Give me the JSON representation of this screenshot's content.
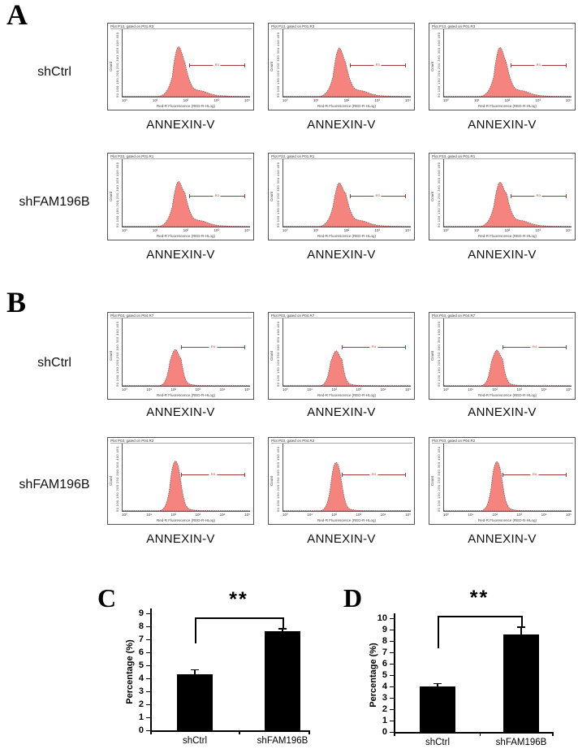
{
  "colors": {
    "histogram_fill": "#f5837e",
    "histogram_outline": "#555555",
    "gate": "#a23b38",
    "bar": "#000000"
  },
  "figure": {
    "flow_panels": [
      {
        "letter": "A",
        "rows": [
          {
            "row_label": "shCtrl",
            "plot_header": "Plot P13, gated on P01.R3",
            "gate_label": "R3",
            "ylabel": "Count",
            "y_ticks": "50 100 150 200 250 300 350 400 450",
            "x_ticks": [
              "10⁰",
              "10¹",
              "10²",
              "10³",
              "10⁴"
            ],
            "xlabel": "Red-R Fluorescence (RED-R-HLog)",
            "axis_caption": "ANNEXIN-V",
            "shape": {
              "variant": "tail",
              "apex": 26,
              "peak_x": 45,
              "gate_x1": 52,
              "gate_x2": 96,
              "gate_y": 53
            }
          },
          {
            "row_label": "shFAM196B",
            "plot_header": "Plot P33, gated on P01.R1",
            "gate_label": "R3",
            "ylabel": "Count",
            "y_ticks": "50 100 150 200 250 300 350 400 450",
            "x_ticks": [
              "10⁰",
              "10¹",
              "10²",
              "10³",
              "10⁴"
            ],
            "xlabel": "Red-R Fluorescence (RED-R-HLog)",
            "axis_caption": "ANNEXIN-V",
            "shape": {
              "variant": "tail",
              "apex": 33,
              "peak_x": 45,
              "gate_x1": 52,
              "gate_x2": 96,
              "gate_y": 54
            }
          }
        ]
      },
      {
        "letter": "B",
        "rows": [
          {
            "row_label": "shCtrl",
            "plot_header": "Plot P03, gated on P04.R7",
            "gate_label": "R4",
            "ylabel": "Count",
            "y_ticks": "50 100 150 200 250 300 350 400 450",
            "x_ticks": [
              "10⁰",
              "10¹",
              "10²",
              "10³",
              "10⁴",
              "10⁵"
            ],
            "xlabel": "Red-R Fluorescence (RED-R-HLog)",
            "axis_caption": "ANNEXIN-V",
            "shape": {
              "variant": "narrow",
              "apex": 46,
              "peak_x": 42,
              "gate_x1": 46,
              "gate_x2": 96,
              "gate_y": 42
            }
          },
          {
            "row_label": "shFAM196B",
            "plot_header": "Plot P03, gated on P04.R2",
            "gate_label": "R4",
            "ylabel": "Count",
            "y_ticks": "50 100 150 200 250 300 350 400 450",
            "x_ticks": [
              "10⁰",
              "10¹",
              "10²",
              "10³",
              "10⁴",
              "10⁵"
            ],
            "xlabel": "Red-R Fluorescence (RED-R-HLog)",
            "axis_caption": "ANNEXIN-V",
            "shape": {
              "variant": "narrow",
              "apex": 26,
              "peak_x": 42,
              "gate_x1": 46,
              "gate_x2": 96,
              "gate_y": 46
            }
          }
        ]
      }
    ]
  },
  "chart_data": [
    {
      "id": "C",
      "panel_letter": "C",
      "type": "bar",
      "categories": [
        "shCtrl",
        "shFAM196B"
      ],
      "values": [
        4.3,
        7.6
      ],
      "errors": [
        0.35,
        0.2
      ],
      "ylabel": "Percentage (%)",
      "ylim": [
        0,
        9
      ],
      "ytick_step": 1,
      "significance": "**",
      "grid": "off",
      "legend": "none"
    },
    {
      "id": "D",
      "panel_letter": "D",
      "type": "bar",
      "categories": [
        "shCtrl",
        "shFAM196B"
      ],
      "values": [
        4.0,
        8.6
      ],
      "errors": [
        0.25,
        0.6
      ],
      "ylabel": "Percentage (%)",
      "ylim": [
        0,
        10
      ],
      "ytick_step": 1,
      "significance": "**",
      "grid": "off",
      "legend": "none"
    }
  ]
}
